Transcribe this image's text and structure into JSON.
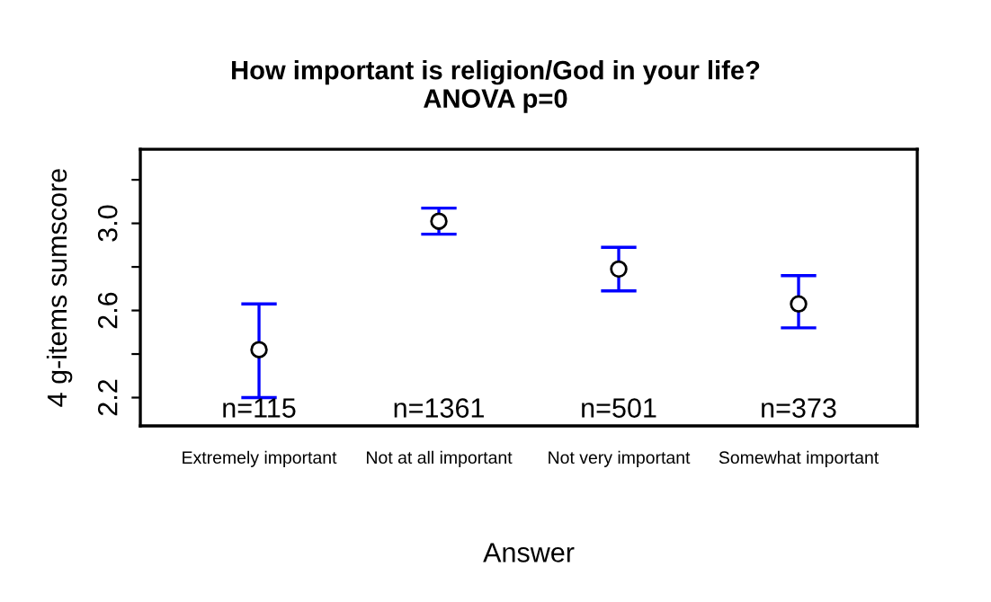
{
  "chart_data": {
    "type": "scatter",
    "title": "How important is religion/God in your life?\nANOVA p=0",
    "xlabel": "Answer",
    "ylabel": "4 g-items sumscore",
    "categories": [
      "Extremely important",
      "Not at all important",
      "Not very important",
      "Somewhat important"
    ],
    "series": [
      {
        "color": "#000000",
        "values": [
          2.42,
          3.01,
          2.79,
          2.63
        ],
        "errors": [
          [
            2.2,
            2.63
          ],
          [
            2.95,
            3.07
          ],
          [
            2.69,
            2.89
          ],
          [
            2.52,
            2.76
          ]
        ]
      }
    ],
    "marker": "circle",
    "ylim": [
      2.07,
      3.34
    ],
    "yticks": [
      2.2,
      {
        "value": 2.4,
        "label": null
      },
      2.6,
      {
        "value": 2.8,
        "label": null
      },
      {
        "value": 3.0,
        "label": "3.0"
      },
      {
        "value": 3.2,
        "label": null
      }
    ],
    "grid": false,
    "legend": false,
    "annotations": [
      "n=115",
      "n=1361",
      "n=501",
      "n=373"
    ]
  }
}
